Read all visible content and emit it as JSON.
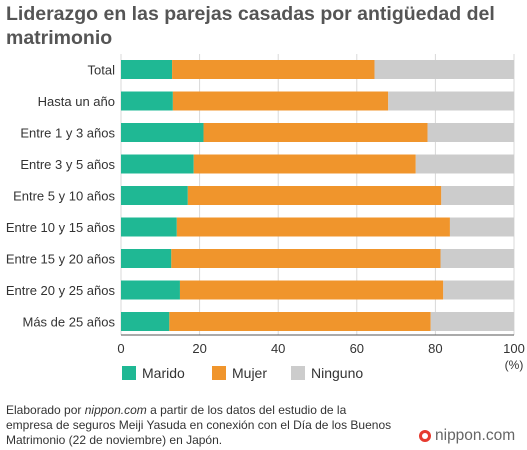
{
  "title": "Liderazgo en las parejas casadas por antigüedad del matrimonio",
  "source": {
    "prefix": "Elaborado por ",
    "site": "nippon.com",
    "rest": " a partir de los datos del estudio de la empresa de seguros Meiji Yasuda en conexión con el Día de los Buenos Matrimonio (22 de noviembre) en Japón."
  },
  "logo_text": "nippon.com",
  "colors": {
    "Marido": "#1fb894",
    "Mujer": "#f0952c",
    "Ninguno": "#cccccc",
    "grid": "#d9d9d9",
    "axis": "#555555"
  },
  "chart_data": {
    "type": "bar",
    "orientation": "horizontal",
    "stacked": true,
    "categories": [
      "Total",
      "Hasta un año",
      "Entre 1 y 3 años",
      "Entre 3 y 5 años",
      "Entre 5 y 10 años",
      "Entre 10 y 15 años",
      "Entre 15 y 20 años",
      "Entre 20 y 25 años",
      "Más de 25 años"
    ],
    "series": [
      {
        "name": "Marido",
        "values": [
          13,
          13.2,
          21,
          18.5,
          17,
          14.2,
          12.8,
          15,
          12.3
        ]
      },
      {
        "name": "Mujer",
        "values": [
          51.5,
          54.8,
          57,
          56.5,
          64.5,
          69.5,
          68.5,
          67,
          66.5
        ]
      },
      {
        "name": "Ninguno",
        "values": [
          35.5,
          32,
          22,
          25,
          18.5,
          16.3,
          18.7,
          18,
          21.2
        ]
      }
    ],
    "xlim": [
      0,
      100
    ],
    "xticks": [
      0,
      20,
      40,
      60,
      80,
      100
    ],
    "xunit": "(%)",
    "grid": true,
    "legend_position": "bottom"
  }
}
